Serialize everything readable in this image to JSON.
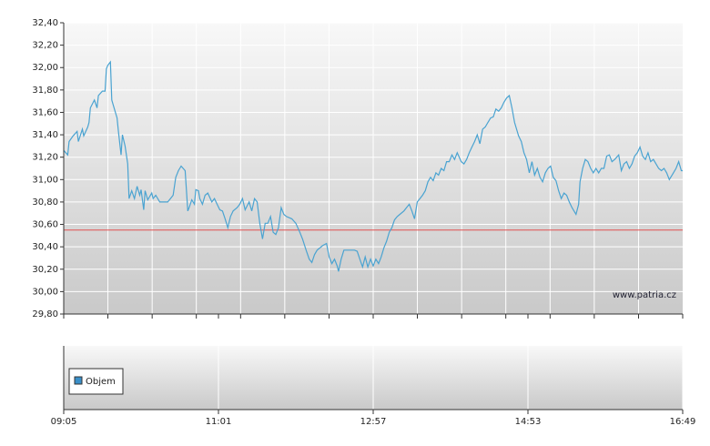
{
  "chart_data": {
    "type": "line",
    "color": "#4aa3d1",
    "xlim": [
      545,
      1009
    ],
    "xticks": [
      {
        "value": 545,
        "label": "09:05"
      },
      {
        "value": 661,
        "label": "11:01"
      },
      {
        "value": 777,
        "label": "12:57"
      },
      {
        "value": 893,
        "label": "14:53"
      },
      {
        "value": 1009,
        "label": "16:49"
      }
    ],
    "xgrid": [
      578.1,
      611.3,
      644.4,
      677.6,
      710.7,
      743.9,
      777,
      810.1,
      843.3,
      876.4,
      909.6,
      942.7,
      975.9
    ],
    "ylim": [
      29.8,
      32.4
    ],
    "yticks": [
      {
        "value": 29.8,
        "label": "29,80"
      },
      {
        "value": 30.0,
        "label": "30,00"
      },
      {
        "value": 30.2,
        "label": "30,20"
      },
      {
        "value": 30.4,
        "label": "30,40"
      },
      {
        "value": 30.6,
        "label": "30,60"
      },
      {
        "value": 30.8,
        "label": "30,80"
      },
      {
        "value": 31.0,
        "label": "31,00"
      },
      {
        "value": 31.2,
        "label": "31,20"
      },
      {
        "value": 31.4,
        "label": "31,40"
      },
      {
        "value": 31.6,
        "label": "31,60"
      },
      {
        "value": 31.8,
        "label": "31,80"
      },
      {
        "value": 32.0,
        "label": "32,00"
      },
      {
        "value": 32.2,
        "label": "32,20"
      },
      {
        "value": 32.4,
        "label": "32,40"
      }
    ],
    "grid": true,
    "ref_line": {
      "value": 30.55,
      "color": "#e05050"
    },
    "watermark": "www.patria.cz",
    "volume_legend": "Objem",
    "volume_color": "#3a8fc8",
    "x": [
      545,
      548,
      549,
      552,
      555,
      556,
      559,
      560,
      563,
      564,
      565,
      568,
      570,
      571,
      574,
      576,
      577,
      578,
      580,
      581,
      583,
      585,
      586,
      588,
      589,
      591,
      593,
      594,
      596,
      598,
      600,
      602,
      603,
      605,
      606,
      608,
      611,
      612,
      614,
      617,
      620,
      623,
      627,
      629,
      631,
      633,
      636,
      638,
      639,
      641,
      643,
      644,
      646,
      647,
      649,
      651,
      653,
      656,
      658,
      660,
      662,
      664,
      666,
      668,
      670,
      672,
      675,
      677,
      679,
      681,
      684,
      686,
      688,
      690,
      692,
      694,
      696,
      698,
      700,
      702,
      704,
      706,
      708,
      710,
      712,
      716,
      719,
      722,
      724,
      727,
      729,
      731,
      733,
      735,
      737,
      739,
      742,
      744,
      746,
      748,
      750,
      751,
      753,
      755,
      757,
      760,
      763,
      765,
      767,
      769,
      771,
      773,
      775,
      777,
      779,
      781,
      783,
      785,
      787,
      789,
      791,
      793,
      795,
      797,
      800,
      802,
      804,
      806,
      808,
      810,
      812,
      814,
      816,
      818,
      820,
      822,
      824,
      826,
      828,
      830,
      832,
      834,
      836,
      838,
      840,
      843,
      845,
      847,
      849,
      851,
      853,
      855,
      857,
      859,
      861,
      863,
      865,
      867,
      869,
      871,
      873,
      875,
      877,
      879,
      881,
      883,
      886,
      888,
      890,
      892,
      894,
      896,
      898,
      900,
      902,
      904,
      906,
      908,
      910,
      912,
      914,
      916,
      918,
      920,
      922,
      924,
      926,
      929,
      931,
      932,
      934,
      936,
      938,
      940,
      942,
      944,
      946,
      948,
      950,
      952,
      954,
      956,
      958,
      961,
      963,
      965,
      967,
      969,
      971,
      973,
      975,
      977,
      979,
      981,
      983,
      985,
      987,
      989,
      991,
      993,
      995,
      997,
      999,
      1001,
      1004,
      1006,
      1008,
      1009
    ],
    "values": [
      31.26,
      31.22,
      31.34,
      31.39,
      31.43,
      31.34,
      31.45,
      31.39,
      31.47,
      31.51,
      31.64,
      31.71,
      31.64,
      31.75,
      31.79,
      31.79,
      31.99,
      32.02,
      32.05,
      31.71,
      31.63,
      31.55,
      31.43,
      31.22,
      31.4,
      31.3,
      31.14,
      30.83,
      30.9,
      30.83,
      30.94,
      30.86,
      30.91,
      30.73,
      30.9,
      30.82,
      30.88,
      30.83,
      30.86,
      30.8,
      30.8,
      30.8,
      30.86,
      31.02,
      31.08,
      31.12,
      31.08,
      30.72,
      30.75,
      30.82,
      30.78,
      30.91,
      30.9,
      30.83,
      30.78,
      30.86,
      30.88,
      30.8,
      30.83,
      30.78,
      30.73,
      30.72,
      30.65,
      30.57,
      30.67,
      30.72,
      30.75,
      30.78,
      30.83,
      30.73,
      30.8,
      30.72,
      30.83,
      30.8,
      30.61,
      30.47,
      30.61,
      30.61,
      30.67,
      30.53,
      30.51,
      30.57,
      30.75,
      30.69,
      30.67,
      30.65,
      30.61,
      30.53,
      30.47,
      30.36,
      30.29,
      30.26,
      30.33,
      30.37,
      30.39,
      30.41,
      30.43,
      30.31,
      30.25,
      30.29,
      30.23,
      30.18,
      30.29,
      30.37,
      30.37,
      30.37,
      30.37,
      30.36,
      30.29,
      30.22,
      30.31,
      30.22,
      30.29,
      30.23,
      30.29,
      30.25,
      30.31,
      30.39,
      30.45,
      30.53,
      30.57,
      30.64,
      30.67,
      30.69,
      30.72,
      30.75,
      30.78,
      30.72,
      30.65,
      30.8,
      30.83,
      30.86,
      30.9,
      30.98,
      31.02,
      30.99,
      31.06,
      31.04,
      31.1,
      31.08,
      31.16,
      31.16,
      31.22,
      31.18,
      31.24,
      31.16,
      31.14,
      31.18,
      31.24,
      31.29,
      31.34,
      31.4,
      31.32,
      31.45,
      31.47,
      31.51,
      31.55,
      31.56,
      31.63,
      31.61,
      31.64,
      31.69,
      31.73,
      31.75,
      31.64,
      31.51,
      31.39,
      31.34,
      31.24,
      31.18,
      31.06,
      31.16,
      31.04,
      31.1,
      31.02,
      30.98,
      31.06,
      31.1,
      31.12,
      31.02,
      30.99,
      30.9,
      30.83,
      30.88,
      30.86,
      30.8,
      30.75,
      30.69,
      30.78,
      30.98,
      31.1,
      31.18,
      31.16,
      31.1,
      31.06,
      31.1,
      31.06,
      31.1,
      31.1,
      31.21,
      31.22,
      31.16,
      31.18,
      31.22,
      31.08,
      31.14,
      31.16,
      31.1,
      31.14,
      31.21,
      31.24,
      31.29,
      31.21,
      31.18,
      31.24,
      31.16,
      31.18,
      31.14,
      31.1,
      31.08,
      31.1,
      31.06,
      31.0,
      31.04,
      31.1,
      31.16,
      31.08,
      31.08
    ]
  }
}
